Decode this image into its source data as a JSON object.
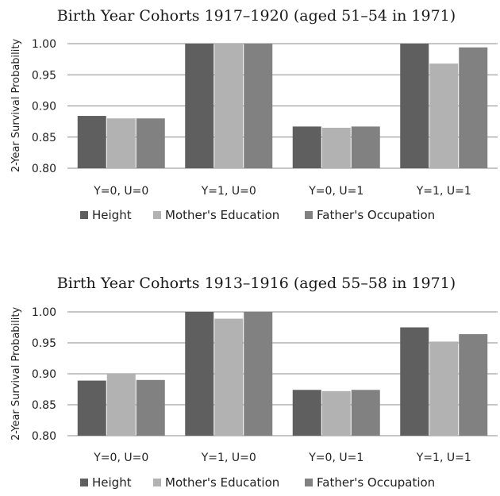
{
  "chart_data": [
    {
      "type": "bar",
      "title": "Birth Year Cohorts 1917–1920 (aged 51–54 in 1971)",
      "ylabel": "2-Year Survival Probability",
      "xlabel": "",
      "ylim": [
        0.8,
        1.0
      ],
      "yticks": [
        "0.80",
        "0.85",
        "0.90",
        "0.95",
        "1.00"
      ],
      "grid": true,
      "legend_position": "bottom",
      "categories": [
        "Y=0, U=0",
        "Y=1, U=0",
        "Y=0, U=1",
        "Y=1, U=1"
      ],
      "series": [
        {
          "name": "Height",
          "color": "#5f5f5f",
          "values": [
            0.884,
            1.0,
            0.867,
            1.0
          ]
        },
        {
          "name": "Mother's Education",
          "color": "#b2b2b2",
          "values": [
            0.88,
            1.0,
            0.865,
            0.968
          ]
        },
        {
          "name": "Father's Occupation",
          "color": "#818181",
          "values": [
            0.88,
            1.0,
            0.867,
            0.994
          ]
        }
      ]
    },
    {
      "type": "bar",
      "title": "Birth Year Cohorts 1913–1916 (aged 55–58 in 1971)",
      "ylabel": "2-Year Survival Probability",
      "xlabel": "",
      "ylim": [
        0.8,
        1.0
      ],
      "yticks": [
        "0.80",
        "0.85",
        "0.90",
        "0.95",
        "1.00"
      ],
      "grid": true,
      "legend_position": "bottom",
      "categories": [
        "Y=0, U=0",
        "Y=1, U=0",
        "Y=0, U=1",
        "Y=1, U=1"
      ],
      "series": [
        {
          "name": "Height",
          "color": "#5f5f5f",
          "values": [
            0.889,
            1.0,
            0.874,
            0.975
          ]
        },
        {
          "name": "Mother's Education",
          "color": "#b2b2b2",
          "values": [
            0.9,
            0.989,
            0.872,
            0.952
          ]
        },
        {
          "name": "Father's Occupation",
          "color": "#818181",
          "values": [
            0.89,
            1.0,
            0.874,
            0.964
          ]
        }
      ]
    }
  ]
}
